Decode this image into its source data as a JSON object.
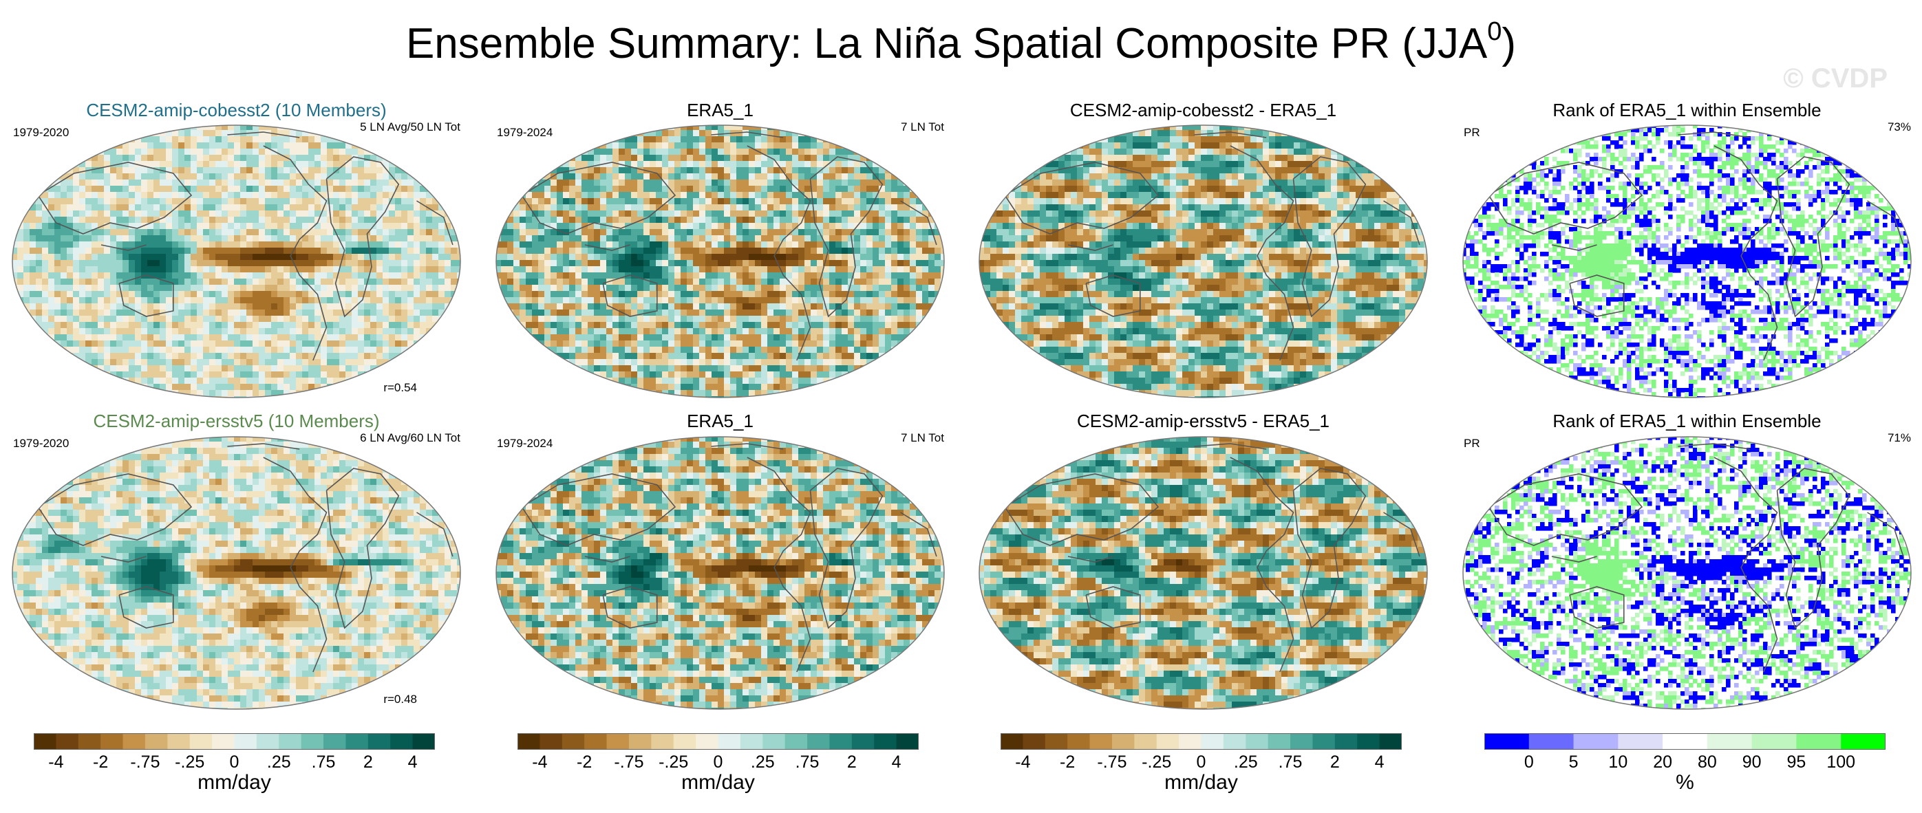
{
  "title_main": "Ensemble Summary: La Niña Spatial Composite PR (JJA",
  "title_sup": "0",
  "title_close": ")",
  "watermark": "© CVDP",
  "colors": {
    "div": [
      "#543005",
      "#6f420f",
      "#8c5a1a",
      "#a9722a",
      "#c6924a",
      "#d6b070",
      "#e6cc98",
      "#f2e4c0",
      "#f6efe0",
      "#e2f0ef",
      "#c0e5e0",
      "#9dd6cc",
      "#74c2b4",
      "#4ea89b",
      "#2b8c82",
      "#14716a",
      "#055a52",
      "#00443c"
    ],
    "rank": [
      "#0000ff",
      "#6a6aff",
      "#b3b3ff",
      "#dedef8",
      "#ffffff",
      "#e2f7e2",
      "#bff5bf",
      "#85f585",
      "#00ff00"
    ],
    "map_bg": "#f4f1ea"
  },
  "rows": [
    {
      "panels": [
        {
          "title": "CESM2-amip-cobesst2 (10 Members)",
          "left": "1979-2020",
          "right": "5 LN Avg/50 LN Tot",
          "corr": "r=0.54",
          "kind": "model",
          "seed": 11
        },
        {
          "title": "ERA5_1",
          "left": "1979-2024",
          "right": "7 LN Tot",
          "kind": "obs",
          "seed": 23
        },
        {
          "title": "CESM2-amip-cobesst2 - ERA5_1",
          "kind": "diff",
          "seed": 37
        },
        {
          "title": "Rank of ERA5_1 within Ensemble",
          "left": "PR",
          "right": "73%",
          "kind": "rank",
          "seed": 41
        }
      ]
    },
    {
      "panels": [
        {
          "title": "CESM2-amip-ersstv5 (10 Members)",
          "left": "1979-2020",
          "right": "6 LN Avg/60 LN Tot",
          "corr": "r=0.48",
          "kind": "model",
          "seed": 53
        },
        {
          "title": "ERA5_1",
          "left": "1979-2024",
          "right": "7 LN Tot",
          "kind": "obs",
          "seed": 23
        },
        {
          "title": "CESM2-amip-ersstv5 - ERA5_1",
          "kind": "diff",
          "seed": 67
        },
        {
          "title": "Rank of ERA5_1 within Ensemble",
          "left": "PR",
          "right": "71%",
          "kind": "rank",
          "seed": 79
        }
      ]
    }
  ],
  "colorbars": [
    {
      "unit": "mm/day",
      "ticks": [
        "-4",
        "-2",
        "-.75",
        "-.25",
        "0",
        ".25",
        ".75",
        "2",
        "4"
      ]
    },
    {
      "unit": "mm/day",
      "ticks": [
        "-4",
        "-2",
        "-.75",
        "-.25",
        "0",
        ".25",
        ".75",
        "2",
        "4"
      ]
    },
    {
      "unit": "mm/day",
      "ticks": [
        "-4",
        "-2",
        "-.75",
        "-.25",
        "0",
        ".25",
        ".75",
        "2",
        "4"
      ]
    },
    {
      "unit": "%",
      "ticks": [
        "0",
        "5",
        "10",
        "20",
        "80",
        "90",
        "95",
        "100"
      ]
    }
  ],
  "chart_data": {
    "type": "heatmap",
    "title": "Ensemble Summary: La Niña Spatial Composite PR (JJA0)",
    "variable": "PR",
    "season": "JJA",
    "unit": "mm/day",
    "contour_levels": [
      -4,
      -2,
      -0.75,
      -0.25,
      0,
      0.25,
      0.75,
      2,
      4
    ],
    "rank_levels": [
      0,
      5,
      10,
      20,
      80,
      90,
      95,
      100
    ],
    "panels": [
      {
        "name": "CESM2-amip-cobesst2 (10 Members)",
        "period": "1979-2020",
        "events": "5 LN Avg/50 LN Tot",
        "pattern_correlation": 0.54
      },
      {
        "name": "ERA5_1",
        "period": "1979-2024",
        "events": "7 LN Tot"
      },
      {
        "name": "CESM2-amip-cobesst2 - ERA5_1"
      },
      {
        "name": "Rank of ERA5_1 within Ensemble",
        "percent": 73
      },
      {
        "name": "CESM2-amip-ersstv5 (10 Members)",
        "period": "1979-2020",
        "events": "6 LN Avg/60 LN Tot",
        "pattern_correlation": 0.48
      },
      {
        "name": "ERA5_1",
        "period": "1979-2024",
        "events": "7 LN Tot"
      },
      {
        "name": "CESM2-amip-ersstv5 - ERA5_1"
      },
      {
        "name": "Rank of ERA5_1 within Ensemble",
        "percent": 71
      }
    ]
  }
}
